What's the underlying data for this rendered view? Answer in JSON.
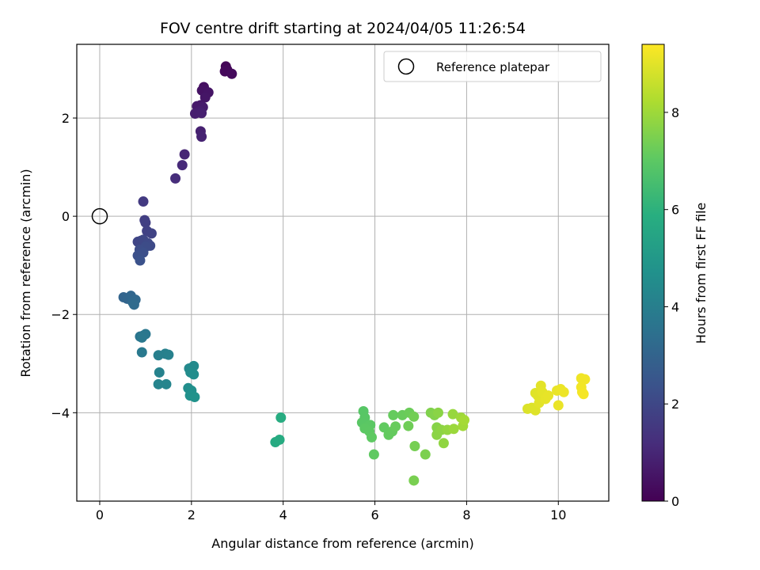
{
  "chart_data": {
    "type": "scatter",
    "title": "FOV centre drift starting at 2024/04/05 11:26:54",
    "xlabel": "Angular distance from reference (arcmin)",
    "ylabel": "Rotation from reference (arcmin)",
    "xlim": [
      -0.5,
      11.1
    ],
    "ylim": [
      -5.8,
      3.5
    ],
    "xticks": [
      0,
      2,
      4,
      6,
      8,
      10
    ],
    "yticks": [
      -4,
      -2,
      0,
      2
    ],
    "xtick_labels": [
      "0",
      "2",
      "4",
      "6",
      "8",
      "10"
    ],
    "ytick_labels": [
      "−4",
      "−2",
      "0",
      "2"
    ],
    "grid": true,
    "legend": {
      "entries": [
        "Reference platepar"
      ],
      "placement": "top-right"
    },
    "reference_point": {
      "x": 0,
      "y": 0,
      "label": "Reference platepar"
    },
    "colorbar": {
      "label": "Hours from first FF file",
      "colormap": "viridis",
      "range": [
        0,
        9.4
      ],
      "ticks": [
        0,
        2,
        4,
        6,
        8
      ],
      "tick_labels": [
        "0",
        "2",
        "4",
        "6",
        "8"
      ]
    },
    "points": [
      {
        "x": 2.75,
        "y": 3.05,
        "c": 0.1
      },
      {
        "x": 2.78,
        "y": 2.98,
        "c": 0.15
      },
      {
        "x": 2.73,
        "y": 2.95,
        "c": 0.2
      },
      {
        "x": 2.88,
        "y": 2.9,
        "c": 0.25
      },
      {
        "x": 2.27,
        "y": 2.63,
        "c": 0.4
      },
      {
        "x": 2.23,
        "y": 2.56,
        "c": 0.45
      },
      {
        "x": 2.37,
        "y": 2.52,
        "c": 0.5
      },
      {
        "x": 2.3,
        "y": 2.42,
        "c": 0.55
      },
      {
        "x": 2.2,
        "y": 2.26,
        "c": 0.6
      },
      {
        "x": 2.12,
        "y": 2.24,
        "c": 0.65
      },
      {
        "x": 2.25,
        "y": 2.22,
        "c": 0.7
      },
      {
        "x": 2.18,
        "y": 2.14,
        "c": 0.75
      },
      {
        "x": 2.08,
        "y": 2.09,
        "c": 0.78
      },
      {
        "x": 2.22,
        "y": 2.1,
        "c": 0.8
      },
      {
        "x": 2.2,
        "y": 1.73,
        "c": 0.85
      },
      {
        "x": 2.22,
        "y": 1.62,
        "c": 0.9
      },
      {
        "x": 1.85,
        "y": 1.26,
        "c": 1.0
      },
      {
        "x": 1.8,
        "y": 1.04,
        "c": 1.1
      },
      {
        "x": 1.65,
        "y": 0.77,
        "c": 1.2
      },
      {
        "x": 0.95,
        "y": 0.3,
        "c": 1.6
      },
      {
        "x": 0.98,
        "y": -0.08,
        "c": 1.7
      },
      {
        "x": 1.0,
        "y": -0.13,
        "c": 1.75
      },
      {
        "x": 1.03,
        "y": -0.3,
        "c": 1.8
      },
      {
        "x": 1.13,
        "y": -0.35,
        "c": 1.85
      },
      {
        "x": 0.9,
        "y": -0.5,
        "c": 1.9
      },
      {
        "x": 0.83,
        "y": -0.52,
        "c": 1.95
      },
      {
        "x": 0.95,
        "y": -0.48,
        "c": 2.0
      },
      {
        "x": 1.05,
        "y": -0.55,
        "c": 2.05
      },
      {
        "x": 1.1,
        "y": -0.6,
        "c": 2.1
      },
      {
        "x": 1.0,
        "y": -0.62,
        "c": 2.15
      },
      {
        "x": 0.87,
        "y": -0.68,
        "c": 2.2
      },
      {
        "x": 0.95,
        "y": -0.74,
        "c": 2.25
      },
      {
        "x": 0.83,
        "y": -0.8,
        "c": 2.3
      },
      {
        "x": 0.88,
        "y": -0.9,
        "c": 2.35
      },
      {
        "x": 0.52,
        "y": -1.65,
        "c": 3.0
      },
      {
        "x": 0.6,
        "y": -1.68,
        "c": 3.05
      },
      {
        "x": 0.68,
        "y": -1.62,
        "c": 3.1
      },
      {
        "x": 0.78,
        "y": -1.7,
        "c": 3.15
      },
      {
        "x": 0.72,
        "y": -1.75,
        "c": 3.2
      },
      {
        "x": 0.75,
        "y": -1.8,
        "c": 3.25
      },
      {
        "x": 0.88,
        "y": -2.45,
        "c": 3.6
      },
      {
        "x": 0.95,
        "y": -2.43,
        "c": 3.65
      },
      {
        "x": 1.0,
        "y": -2.4,
        "c": 3.7
      },
      {
        "x": 0.92,
        "y": -2.47,
        "c": 3.75
      },
      {
        "x": 0.92,
        "y": -2.77,
        "c": 3.8
      },
      {
        "x": 1.28,
        "y": -2.83,
        "c": 4.0
      },
      {
        "x": 1.43,
        "y": -2.8,
        "c": 4.05
      },
      {
        "x": 1.5,
        "y": -2.82,
        "c": 4.1
      },
      {
        "x": 1.3,
        "y": -3.18,
        "c": 4.15
      },
      {
        "x": 1.28,
        "y": -3.42,
        "c": 4.2
      },
      {
        "x": 1.45,
        "y": -3.42,
        "c": 4.25
      },
      {
        "x": 1.95,
        "y": -3.1,
        "c": 4.4
      },
      {
        "x": 2.05,
        "y": -3.05,
        "c": 4.45
      },
      {
        "x": 1.98,
        "y": -3.18,
        "c": 4.5
      },
      {
        "x": 2.05,
        "y": -3.22,
        "c": 4.55
      },
      {
        "x": 1.93,
        "y": -3.5,
        "c": 4.6
      },
      {
        "x": 2.0,
        "y": -3.55,
        "c": 4.65
      },
      {
        "x": 1.97,
        "y": -3.65,
        "c": 4.7
      },
      {
        "x": 2.07,
        "y": -3.68,
        "c": 4.75
      },
      {
        "x": 3.83,
        "y": -4.6,
        "c": 5.7
      },
      {
        "x": 3.92,
        "y": -4.55,
        "c": 5.75
      },
      {
        "x": 3.95,
        "y": -4.1,
        "c": 5.8
      },
      {
        "x": 5.75,
        "y": -3.97,
        "c": 6.9
      },
      {
        "x": 5.78,
        "y": -4.1,
        "c": 6.92
      },
      {
        "x": 5.72,
        "y": -4.2,
        "c": 6.94
      },
      {
        "x": 5.85,
        "y": -4.27,
        "c": 6.96
      },
      {
        "x": 5.9,
        "y": -4.25,
        "c": 6.98
      },
      {
        "x": 5.78,
        "y": -4.32,
        "c": 7.0
      },
      {
        "x": 5.88,
        "y": -4.38,
        "c": 7.02
      },
      {
        "x": 5.93,
        "y": -4.5,
        "c": 7.04
      },
      {
        "x": 5.98,
        "y": -4.85,
        "c": 7.06
      },
      {
        "x": 6.2,
        "y": -4.3,
        "c": 7.1
      },
      {
        "x": 6.3,
        "y": -4.45,
        "c": 7.12
      },
      {
        "x": 6.38,
        "y": -4.38,
        "c": 7.14
      },
      {
        "x": 6.4,
        "y": -4.05,
        "c": 7.16
      },
      {
        "x": 6.45,
        "y": -4.28,
        "c": 7.18
      },
      {
        "x": 6.6,
        "y": -4.05,
        "c": 7.2
      },
      {
        "x": 6.75,
        "y": -4.0,
        "c": 7.25
      },
      {
        "x": 6.73,
        "y": -4.27,
        "c": 7.3
      },
      {
        "x": 6.85,
        "y": -4.08,
        "c": 7.35
      },
      {
        "x": 6.87,
        "y": -4.68,
        "c": 7.4
      },
      {
        "x": 6.85,
        "y": -5.38,
        "c": 7.45
      },
      {
        "x": 7.1,
        "y": -4.85,
        "c": 7.5
      },
      {
        "x": 7.22,
        "y": -4.0,
        "c": 7.55
      },
      {
        "x": 7.3,
        "y": -4.05,
        "c": 7.6
      },
      {
        "x": 7.35,
        "y": -4.3,
        "c": 7.65
      },
      {
        "x": 7.38,
        "y": -4.0,
        "c": 7.7
      },
      {
        "x": 7.35,
        "y": -4.45,
        "c": 7.72
      },
      {
        "x": 7.45,
        "y": -4.35,
        "c": 7.75
      },
      {
        "x": 7.5,
        "y": -4.62,
        "c": 7.8
      },
      {
        "x": 7.58,
        "y": -4.35,
        "c": 7.85
      },
      {
        "x": 7.7,
        "y": -4.03,
        "c": 7.9
      },
      {
        "x": 7.72,
        "y": -4.33,
        "c": 7.95
      },
      {
        "x": 7.88,
        "y": -4.1,
        "c": 8.0
      },
      {
        "x": 7.92,
        "y": -4.27,
        "c": 8.05
      },
      {
        "x": 7.95,
        "y": -4.15,
        "c": 8.1
      },
      {
        "x": 9.33,
        "y": -3.92,
        "c": 8.9
      },
      {
        "x": 9.42,
        "y": -3.9,
        "c": 8.92
      },
      {
        "x": 9.5,
        "y": -3.95,
        "c": 8.94
      },
      {
        "x": 9.5,
        "y": -3.6,
        "c": 8.96
      },
      {
        "x": 9.55,
        "y": -3.65,
        "c": 8.98
      },
      {
        "x": 9.58,
        "y": -3.8,
        "c": 9.0
      },
      {
        "x": 9.62,
        "y": -3.45,
        "c": 9.02
      },
      {
        "x": 9.65,
        "y": -3.58,
        "c": 9.04
      },
      {
        "x": 9.72,
        "y": -3.72,
        "c": 9.06
      },
      {
        "x": 9.78,
        "y": -3.65,
        "c": 9.08
      },
      {
        "x": 9.97,
        "y": -3.55,
        "c": 9.1
      },
      {
        "x": 10.0,
        "y": -3.85,
        "c": 9.12
      },
      {
        "x": 10.05,
        "y": -3.52,
        "c": 9.14
      },
      {
        "x": 10.12,
        "y": -3.58,
        "c": 9.16
      },
      {
        "x": 10.5,
        "y": -3.3,
        "c": 9.2
      },
      {
        "x": 10.58,
        "y": -3.32,
        "c": 9.22
      },
      {
        "x": 10.5,
        "y": -3.48,
        "c": 9.24
      },
      {
        "x": 10.52,
        "y": -3.58,
        "c": 9.26
      },
      {
        "x": 10.55,
        "y": -3.62,
        "c": 9.28
      }
    ]
  }
}
